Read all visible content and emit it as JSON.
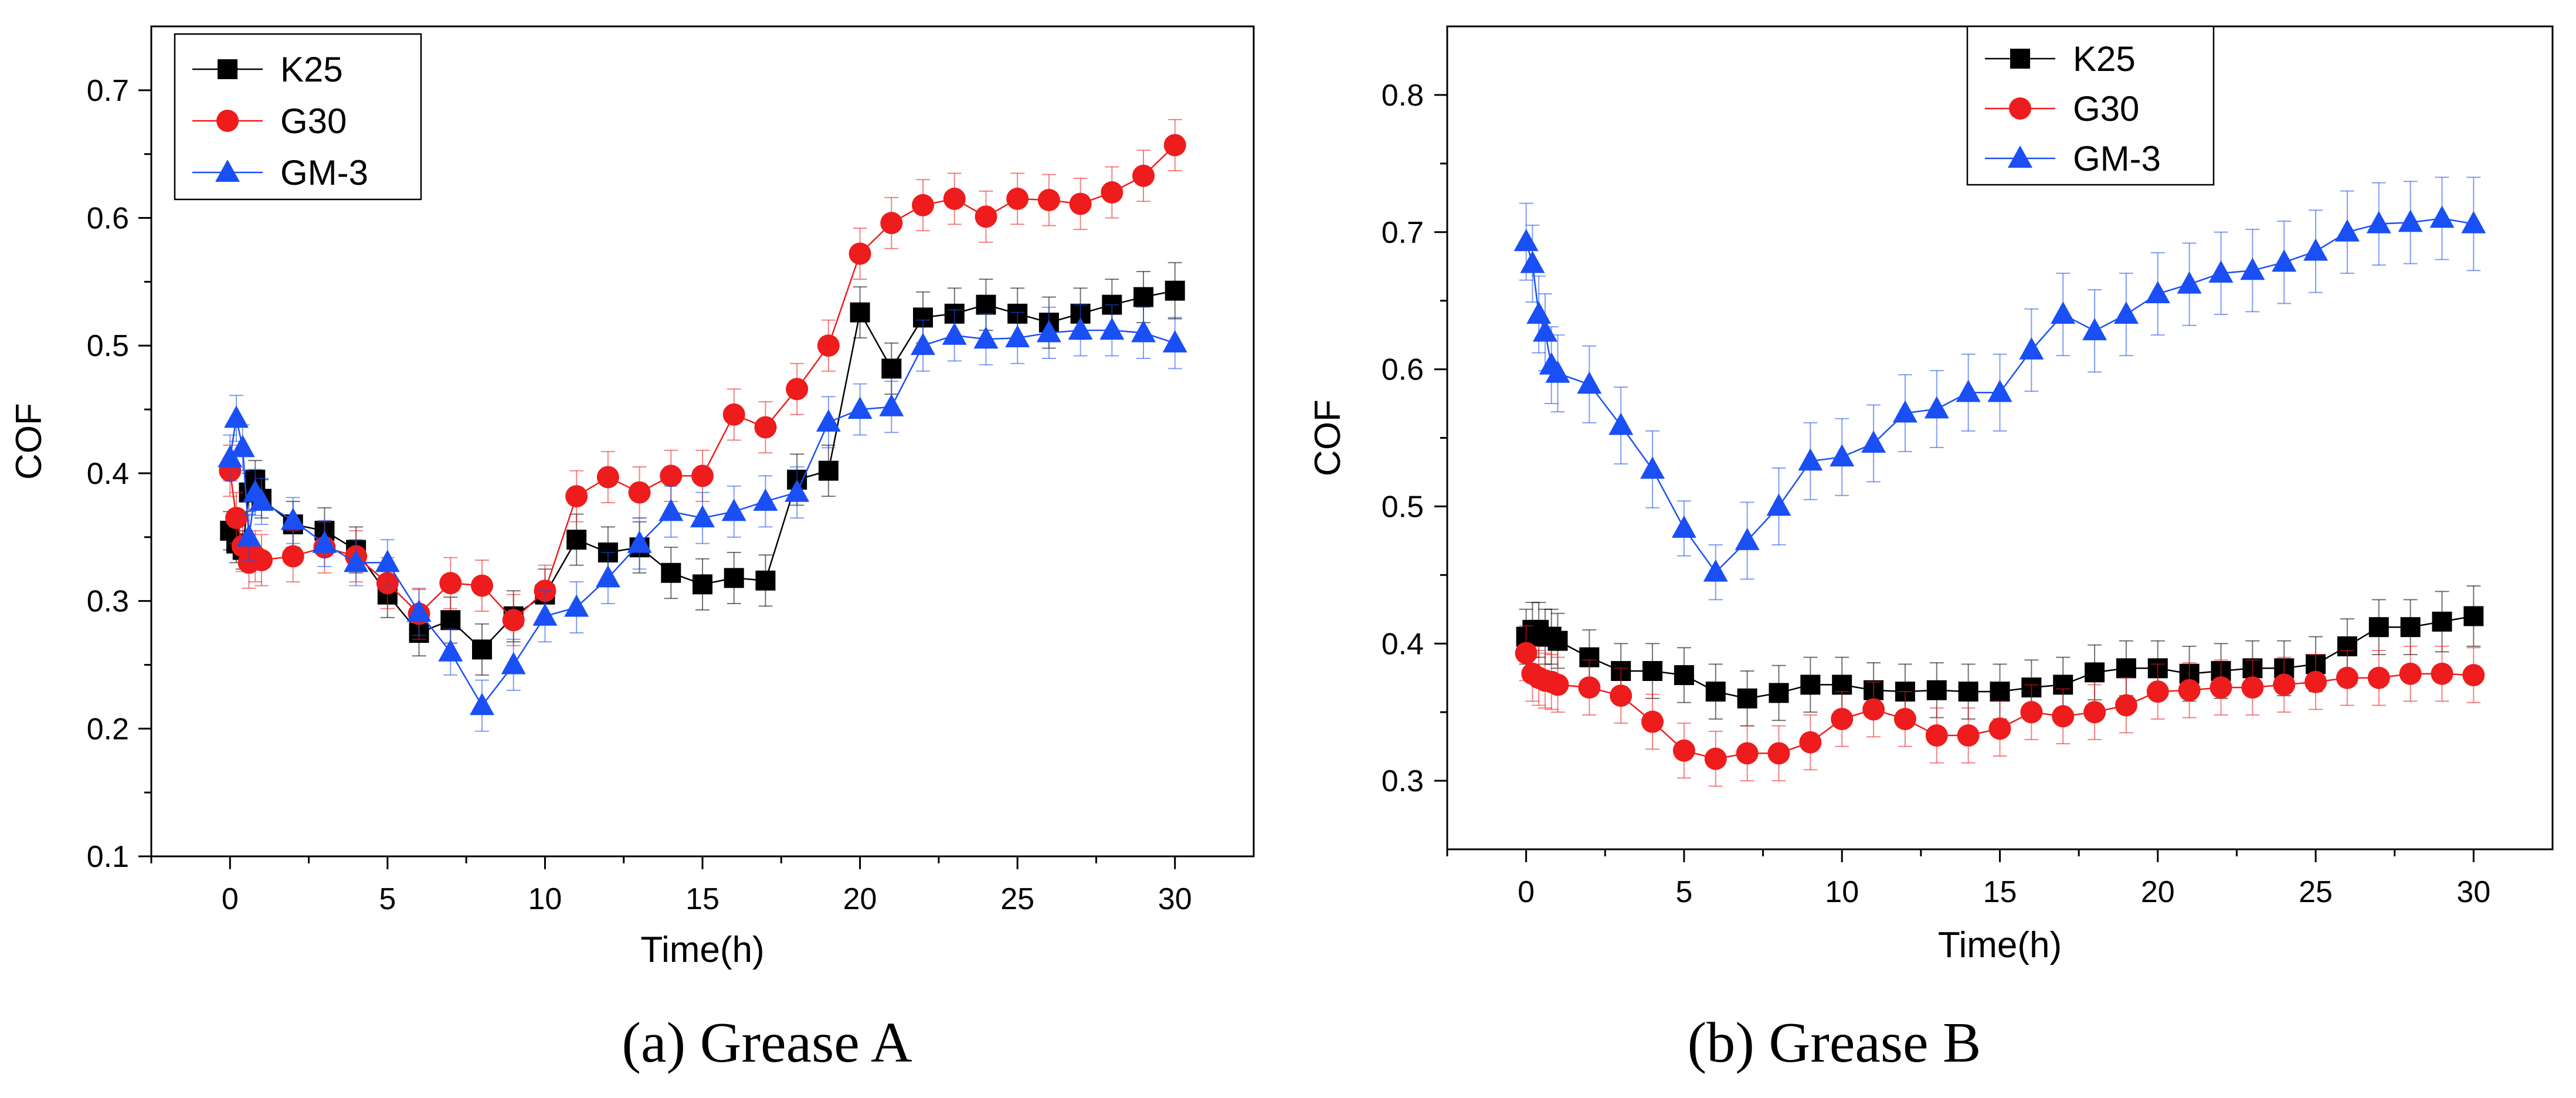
{
  "chart_data": [
    {
      "type": "line",
      "caption": "(a) Grease A",
      "xlabel": "Time(h)",
      "ylabel": "COF",
      "xlim": [
        -2.5,
        32.5
      ],
      "ylim": [
        0.1,
        0.75
      ],
      "xticks": [
        0,
        5,
        10,
        15,
        20,
        25,
        30
      ],
      "yticks": [
        0.1,
        0.2,
        0.3,
        0.4,
        0.5,
        0.6,
        0.7
      ],
      "legend": "top-left",
      "series": [
        {
          "name": "K25",
          "color": "#000000",
          "marker": "square",
          "x": [
            0,
            0.2,
            0.4,
            0.6,
            0.8,
            1,
            2,
            3,
            4,
            5,
            6,
            7,
            8,
            9,
            10,
            11,
            12,
            13,
            14,
            15,
            16,
            17,
            18,
            19,
            20,
            21,
            22,
            23,
            24,
            25,
            26,
            27,
            28,
            29,
            30
          ],
          "y": [
            0.355,
            0.345,
            0.34,
            0.385,
            0.395,
            0.38,
            0.36,
            0.355,
            0.34,
            0.305,
            0.275,
            0.285,
            0.262,
            0.288,
            0.305,
            0.348,
            0.338,
            0.342,
            0.322,
            0.313,
            0.318,
            0.316,
            0.395,
            0.402,
            0.526,
            0.482,
            0.522,
            0.525,
            0.532,
            0.525,
            0.518,
            0.525,
            0.532,
            0.538,
            0.543
          ],
          "err": [
            0.015,
            0.015,
            0.015,
            0.015,
            0.015,
            0.015,
            0.018,
            0.018,
            0.018,
            0.018,
            0.018,
            0.018,
            0.02,
            0.02,
            0.02,
            0.02,
            0.02,
            0.02,
            0.02,
            0.02,
            0.02,
            0.02,
            0.02,
            0.02,
            0.02,
            0.02,
            0.02,
            0.02,
            0.02,
            0.02,
            0.02,
            0.02,
            0.02,
            0.02,
            0.022
          ]
        },
        {
          "name": "G30",
          "color": "#ee1c1c",
          "marker": "circle",
          "x": [
            0,
            0.2,
            0.4,
            0.6,
            0.8,
            1,
            2,
            3,
            4,
            5,
            6,
            7,
            8,
            9,
            10,
            11,
            12,
            13,
            14,
            15,
            16,
            17,
            18,
            19,
            20,
            21,
            22,
            23,
            24,
            25,
            26,
            27,
            28,
            29,
            30
          ],
          "y": [
            0.402,
            0.365,
            0.343,
            0.33,
            0.335,
            0.332,
            0.335,
            0.342,
            0.335,
            0.314,
            0.29,
            0.314,
            0.312,
            0.285,
            0.308,
            0.382,
            0.397,
            0.385,
            0.398,
            0.398,
            0.446,
            0.436,
            0.466,
            0.5,
            0.572,
            0.596,
            0.61,
            0.615,
            0.601,
            0.615,
            0.614,
            0.611,
            0.62,
            0.633,
            0.657
          ],
          "err": [
            0.02,
            0.02,
            0.02,
            0.02,
            0.02,
            0.02,
            0.02,
            0.02,
            0.02,
            0.02,
            0.02,
            0.02,
            0.02,
            0.02,
            0.02,
            0.02,
            0.02,
            0.02,
            0.02,
            0.02,
            0.02,
            0.02,
            0.02,
            0.02,
            0.02,
            0.02,
            0.02,
            0.02,
            0.02,
            0.02,
            0.02,
            0.02,
            0.02,
            0.02,
            0.02
          ]
        },
        {
          "name": "GM-3",
          "color": "#1a4ff5",
          "marker": "triangle",
          "x": [
            0,
            0.2,
            0.4,
            0.6,
            0.8,
            1,
            2,
            3,
            4,
            5,
            6,
            7,
            8,
            9,
            10,
            11,
            12,
            13,
            14,
            15,
            16,
            17,
            18,
            19,
            20,
            21,
            22,
            23,
            24,
            25,
            26,
            27,
            28,
            29,
            30
          ],
          "y": [
            0.412,
            0.443,
            0.42,
            0.35,
            0.385,
            0.378,
            0.363,
            0.345,
            0.33,
            0.33,
            0.291,
            0.26,
            0.218,
            0.25,
            0.288,
            0.295,
            0.318,
            0.345,
            0.37,
            0.365,
            0.37,
            0.378,
            0.385,
            0.44,
            0.45,
            0.452,
            0.5,
            0.508,
            0.505,
            0.506,
            0.51,
            0.512,
            0.512,
            0.51,
            0.502
          ],
          "err": [
            0.018,
            0.018,
            0.018,
            0.018,
            0.018,
            0.018,
            0.018,
            0.018,
            0.018,
            0.018,
            0.018,
            0.018,
            0.02,
            0.02,
            0.02,
            0.02,
            0.02,
            0.02,
            0.02,
            0.02,
            0.02,
            0.02,
            0.02,
            0.02,
            0.02,
            0.02,
            0.02,
            0.02,
            0.02,
            0.02,
            0.02,
            0.02,
            0.02,
            0.02,
            0.02
          ]
        }
      ]
    },
    {
      "type": "line",
      "caption": "(b) Grease B",
      "xlabel": "Time(h)",
      "ylabel": "COF",
      "xlim": [
        -2.5,
        32.5
      ],
      "ylim": [
        0.25,
        0.85
      ],
      "xticks": [
        0,
        5,
        10,
        15,
        20,
        25,
        30
      ],
      "yticks": [
        0.3,
        0.4,
        0.5,
        0.6,
        0.7,
        0.8
      ],
      "legend": "top-center",
      "series": [
        {
          "name": "K25",
          "color": "#000000",
          "marker": "square",
          "x": [
            0,
            0.2,
            0.4,
            0.6,
            0.8,
            1,
            2,
            3,
            4,
            5,
            6,
            7,
            8,
            9,
            10,
            11,
            12,
            13,
            14,
            15,
            16,
            17,
            18,
            19,
            20,
            21,
            22,
            23,
            24,
            25,
            26,
            27,
            28,
            29,
            30
          ],
          "y": [
            0.405,
            0.41,
            0.41,
            0.405,
            0.405,
            0.402,
            0.39,
            0.38,
            0.38,
            0.377,
            0.365,
            0.36,
            0.364,
            0.37,
            0.37,
            0.366,
            0.365,
            0.366,
            0.365,
            0.365,
            0.368,
            0.37,
            0.379,
            0.382,
            0.382,
            0.378,
            0.38,
            0.382,
            0.382,
            0.385,
            0.398,
            0.412,
            0.412,
            0.416,
            0.42
          ],
          "err": [
            0.02,
            0.02,
            0.02,
            0.02,
            0.02,
            0.02,
            0.02,
            0.02,
            0.02,
            0.02,
            0.02,
            0.02,
            0.02,
            0.02,
            0.02,
            0.02,
            0.02,
            0.02,
            0.02,
            0.02,
            0.02,
            0.02,
            0.02,
            0.02,
            0.02,
            0.02,
            0.02,
            0.02,
            0.02,
            0.02,
            0.02,
            0.02,
            0.02,
            0.022,
            0.022
          ]
        },
        {
          "name": "G30",
          "color": "#ee1c1c",
          "marker": "circle",
          "x": [
            0,
            0.2,
            0.4,
            0.6,
            0.8,
            1,
            2,
            3,
            4,
            5,
            6,
            7,
            8,
            9,
            10,
            11,
            12,
            13,
            14,
            15,
            16,
            17,
            18,
            19,
            20,
            21,
            22,
            23,
            24,
            25,
            26,
            27,
            28,
            29,
            30
          ],
          "y": [
            0.393,
            0.378,
            0.375,
            0.373,
            0.372,
            0.37,
            0.368,
            0.362,
            0.343,
            0.322,
            0.316,
            0.32,
            0.32,
            0.328,
            0.345,
            0.352,
            0.345,
            0.333,
            0.333,
            0.338,
            0.35,
            0.347,
            0.35,
            0.355,
            0.365,
            0.366,
            0.368,
            0.368,
            0.37,
            0.372,
            0.375,
            0.375,
            0.378,
            0.378,
            0.377
          ],
          "err": [
            0.02,
            0.02,
            0.02,
            0.02,
            0.02,
            0.02,
            0.02,
            0.02,
            0.02,
            0.02,
            0.02,
            0.02,
            0.02,
            0.02,
            0.02,
            0.02,
            0.02,
            0.02,
            0.02,
            0.02,
            0.02,
            0.02,
            0.02,
            0.02,
            0.02,
            0.02,
            0.02,
            0.02,
            0.02,
            0.02,
            0.02,
            0.02,
            0.02,
            0.02,
            0.02
          ]
        },
        {
          "name": "GM-3",
          "color": "#1a4ff5",
          "marker": "triangle",
          "x": [
            0,
            0.2,
            0.4,
            0.6,
            0.8,
            1,
            2,
            3,
            4,
            5,
            6,
            7,
            8,
            9,
            10,
            11,
            12,
            13,
            14,
            15,
            16,
            17,
            18,
            19,
            20,
            21,
            22,
            23,
            24,
            25,
            26,
            27,
            28,
            29,
            30
          ],
          "y": [
            0.693,
            0.677,
            0.64,
            0.627,
            0.603,
            0.597,
            0.589,
            0.559,
            0.527,
            0.484,
            0.452,
            0.475,
            0.5,
            0.533,
            0.536,
            0.546,
            0.568,
            0.571,
            0.583,
            0.583,
            0.614,
            0.64,
            0.628,
            0.64,
            0.655,
            0.662,
            0.67,
            0.672,
            0.678,
            0.686,
            0.7,
            0.706,
            0.707,
            0.71,
            0.706
          ],
          "err": [
            0.028,
            0.028,
            0.028,
            0.028,
            0.028,
            0.028,
            0.028,
            0.028,
            0.028,
            0.02,
            0.02,
            0.028,
            0.028,
            0.028,
            0.028,
            0.028,
            0.028,
            0.028,
            0.028,
            0.028,
            0.03,
            0.03,
            0.03,
            0.03,
            0.03,
            0.03,
            0.03,
            0.03,
            0.03,
            0.03,
            0.03,
            0.03,
            0.03,
            0.03,
            0.034
          ]
        }
      ]
    }
  ]
}
